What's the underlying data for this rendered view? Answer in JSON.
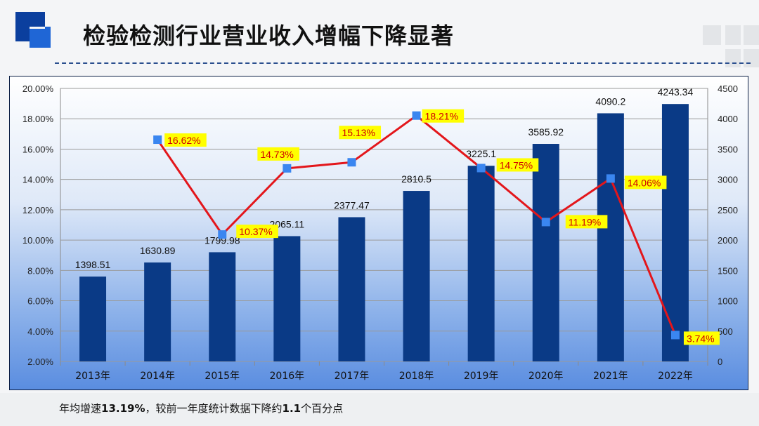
{
  "page": {
    "title": "检验检测行业营业收入增幅下降显著",
    "footnote": {
      "part1": "年均增速",
      "bold1": "13.19%",
      "part2": "，较前一年度统计数据下降约",
      "bold2": "1.1",
      "part3": "个百分点"
    }
  },
  "colors": {
    "bar": "#0a3a86",
    "line": "#e3161b",
    "marker": "#3a86f0",
    "label_bg": "#ffff00",
    "label_text": "#d00000",
    "accent_dark": "#0b3f9e",
    "accent_light": "#1f66d6"
  },
  "chart_data": {
    "type": "bar+line",
    "categories": [
      "2013年",
      "2014年",
      "2015年",
      "2016年",
      "2017年",
      "2018年",
      "2019年",
      "2020年",
      "2021年",
      "2022年"
    ],
    "series": [
      {
        "type": "bar",
        "axis": "right",
        "values": [
          1398.51,
          1630.89,
          1799.98,
          2065.11,
          2377.47,
          2810.5,
          3225.1,
          3585.92,
          4090.2,
          4243.34
        ],
        "labels": [
          "1398.51",
          "1630.89",
          "1799.98",
          "2065.11",
          "2377.47",
          "2810.5",
          "3225.1",
          "3585.92",
          "4090.2",
          "4243.34"
        ]
      },
      {
        "type": "line",
        "axis": "left",
        "values": [
          null,
          16.62,
          10.37,
          14.73,
          15.13,
          18.21,
          14.75,
          11.19,
          14.06,
          3.74
        ],
        "labels": [
          "",
          "16.62%",
          "10.37%",
          "14.73%",
          "15.13%",
          "18.21%",
          "14.75%",
          "11.19%",
          "14.06%",
          "3.74%"
        ]
      }
    ],
    "y_left": {
      "min": 2,
      "max": 20,
      "step": 2,
      "format": "percent",
      "ticks": [
        "2.00%",
        "4.00%",
        "6.00%",
        "8.00%",
        "10.00%",
        "12.00%",
        "14.00%",
        "16.00%",
        "18.00%",
        "20.00%"
      ]
    },
    "y_right": {
      "min": 0,
      "max": 4500,
      "step": 500,
      "ticks": [
        "0",
        "500",
        "1000",
        "1500",
        "2000",
        "2500",
        "3000",
        "3500",
        "4000",
        "4500"
      ]
    },
    "grid": true,
    "legend": "none"
  }
}
